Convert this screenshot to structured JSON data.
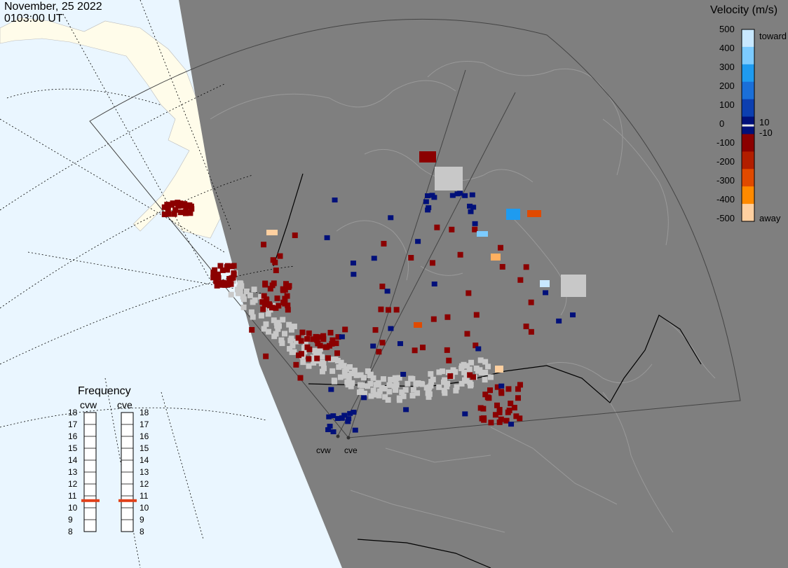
{
  "header": {
    "date": "November, 25 2022",
    "time": "0103:00 UT"
  },
  "colorbar": {
    "title": "Velocity (m/s)",
    "ticks": [
      "500",
      "400",
      "300",
      "200",
      "100",
      "0",
      "-100",
      "-200",
      "-300",
      "-400",
      "-500"
    ],
    "side_labels": {
      "toward": "toward",
      "ten": "10",
      "minus_ten": "-10",
      "away": "away"
    },
    "colors": [
      "#c8e8ff",
      "#7ccbff",
      "#1e9bf0",
      "#1a6fd8",
      "#0c3fb0",
      "#00107a",
      "#8b0000",
      "#b21e00",
      "#e04a00",
      "#ff8a00",
      "#ffd0a0"
    ]
  },
  "frequency": {
    "title": "Frequency",
    "radars": [
      "cvw",
      "cve"
    ],
    "scale": [
      "18",
      "17",
      "16",
      "15",
      "14",
      "13",
      "12",
      "11",
      "10",
      "9",
      "8"
    ],
    "cvw_mhz": 10.6,
    "cve_mhz": 10.6,
    "marker_color": "#e0401a"
  },
  "sites": {
    "west": "cvw",
    "east": "cve"
  },
  "map_colors": {
    "ocean": "#eaf6ff",
    "land_day": "#fffcea",
    "night": "#7f7f7f",
    "ground_scatter": "#c8c8c8"
  }
}
